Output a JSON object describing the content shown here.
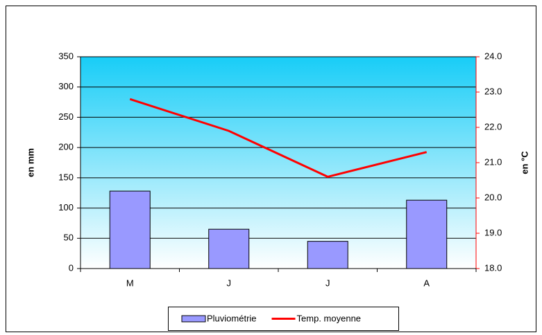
{
  "chart_data": {
    "type": "bar",
    "categories": [
      "M",
      "J",
      "J",
      "A"
    ],
    "series": [
      {
        "name": "Pluviométrie",
        "type": "bar",
        "color": "#9999ff",
        "values": [
          128,
          65,
          45,
          113
        ]
      },
      {
        "name": "Temp. moyenne",
        "type": "line",
        "axis": "y2",
        "color": "#ff0000",
        "values": [
          22.8,
          21.9,
          20.6,
          21.3
        ]
      }
    ],
    "ylabel": "en mm",
    "y2label": "en °C",
    "ylim": [
      0,
      350
    ],
    "yticks": [
      0,
      50,
      100,
      150,
      200,
      250,
      300,
      350
    ],
    "y2lim": [
      18,
      24
    ],
    "y2ticks": [
      {
        "value": 18,
        "label": "18.0"
      },
      {
        "value": 19,
        "label": "19.0"
      },
      {
        "value": 20,
        "label": "20.0"
      },
      {
        "value": 21,
        "label": "21.0"
      },
      {
        "value": 22,
        "label": "22.0"
      },
      {
        "value": 23,
        "label": "23.0"
      },
      {
        "value": 24,
        "label": "24.0"
      }
    ],
    "grid": true,
    "legend": "bottom"
  }
}
